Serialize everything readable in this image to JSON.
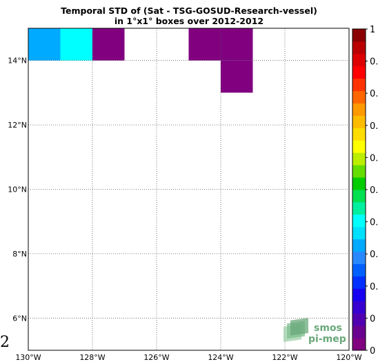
{
  "title": {
    "line1": "Temporal STD of (Sat - TSG-GOSUD-Research-vessel)",
    "line2": "in 1°x1° boxes over 2012-2012"
  },
  "map": {
    "lon_range": [
      -130,
      -120
    ],
    "lat_range": [
      5,
      15
    ],
    "grid": true,
    "cells": [
      {
        "lon": -130,
        "lat": 14,
        "value": 0.4,
        "color": "#00aaff"
      },
      {
        "lon": -129,
        "lat": 14,
        "value": 0.45,
        "color": "#00ffff"
      },
      {
        "lon": -128,
        "lat": 14,
        "value": 0.0,
        "color": "#800080"
      },
      {
        "lon": -125,
        "lat": 14,
        "value": 0.0,
        "color": "#800080"
      },
      {
        "lon": -124,
        "lat": 14,
        "value": 0.0,
        "color": "#800080"
      },
      {
        "lon": -124,
        "lat": 13,
        "value": 0.0,
        "color": "#800080"
      }
    ],
    "x_ticks": [
      {
        "lon": -130,
        "label": "130°W"
      },
      {
        "lon": -128,
        "label": "128°W"
      },
      {
        "lon": -126,
        "label": "126°W"
      },
      {
        "lon": -124,
        "label": "124°W"
      },
      {
        "lon": -122,
        "label": "122°W"
      },
      {
        "lon": -120,
        "label": "120°W"
      }
    ],
    "y_ticks": [
      {
        "lat": 14,
        "label": "14°N"
      },
      {
        "lat": 12,
        "label": "12°N"
      },
      {
        "lat": 10,
        "label": "10°N"
      },
      {
        "lat": 8,
        "label": "8°N"
      },
      {
        "lat": 6,
        "label": "6°N"
      }
    ],
    "stray_label": "2"
  },
  "colorbar": {
    "colors": [
      "#800080",
      "#6a0090",
      "#5000b0",
      "#3800d0",
      "#1800f0",
      "#0030ff",
      "#0060ff",
      "#2a88ff",
      "#00aaff",
      "#00e0ff",
      "#00ffff",
      "#00f0a0",
      "#00e050",
      "#00cc00",
      "#66dd00",
      "#bbee00",
      "#ffff00",
      "#ffdd00",
      "#ffbb00",
      "#ff9900",
      "#ff6600",
      "#ff3300",
      "#ff0000",
      "#dd0000",
      "#bb0000",
      "#8b0000"
    ],
    "labels": [
      {
        "value": 1.0,
        "text": "1"
      },
      {
        "value": 0.9,
        "text": "0."
      },
      {
        "value": 0.8,
        "text": "0."
      },
      {
        "value": 0.7,
        "text": "0."
      },
      {
        "value": 0.6,
        "text": "0."
      },
      {
        "value": 0.5,
        "text": "0."
      },
      {
        "value": 0.4,
        "text": "0."
      },
      {
        "value": 0.3,
        "text": "0."
      },
      {
        "value": 0.2,
        "text": "0."
      },
      {
        "value": 0.1,
        "text": "0"
      },
      {
        "value": 0.0,
        "text": "0"
      }
    ]
  },
  "logo": {
    "line1": "smos",
    "line2": "pi-mep",
    "color": "#6aa87a"
  }
}
